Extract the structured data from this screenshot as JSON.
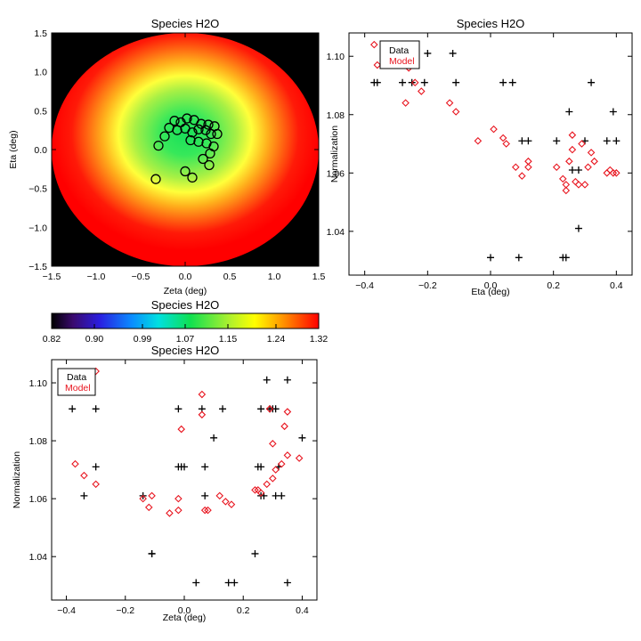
{
  "chart_data": [
    {
      "type": "heatmap",
      "title": "Species H2O",
      "xlabel": "Zeta (deg)",
      "ylabel": "Eta (deg)",
      "xlim": [
        -1.5,
        1.5
      ],
      "ylim": [
        -1.5,
        1.5
      ],
      "xticks": [
        "−1.5",
        "−1.0",
        "−0.5",
        "0.0",
        "0.5",
        "1.0",
        "1.5"
      ],
      "yticks": [
        "−1.5",
        "−1.0",
        "−0.5",
        "0.0",
        "0.5",
        "1.0",
        "1.5"
      ],
      "field_center": [
        0.0,
        0.2
      ],
      "field_radius": 1.5,
      "background_color": "#000000",
      "circles": {
        "x": [
          -0.12,
          -0.05,
          0.02,
          0.1,
          0.18,
          0.26,
          0.33,
          -0.18,
          -0.09,
          0.0,
          0.08,
          0.15,
          0.23,
          0.29,
          0.36,
          -0.23,
          0.06,
          0.15,
          0.24,
          0.32,
          -0.3,
          0.28,
          0.2,
          0.27,
          0.0,
          0.08,
          -0.33
        ],
        "y": [
          0.37,
          0.35,
          0.4,
          0.38,
          0.33,
          0.32,
          0.3,
          0.28,
          0.25,
          0.27,
          0.22,
          0.26,
          0.25,
          0.2,
          0.2,
          0.17,
          0.12,
          0.1,
          0.08,
          0.04,
          0.05,
          -0.05,
          -0.12,
          -0.2,
          -0.28,
          -0.36,
          -0.38
        ]
      }
    },
    {
      "type": "scatter",
      "title": "Species H2O",
      "xlabel": "Eta (deg)",
      "ylabel": "Normalization",
      "xlim": [
        -0.45,
        0.45
      ],
      "ylim": [
        1.025,
        1.108
      ],
      "xticks": [
        "−0.4",
        "−0.2",
        "0.0",
        "0.2",
        "0.4"
      ],
      "yticks": [
        "1.04",
        "1.06",
        "1.08",
        "1.10"
      ],
      "legend": [
        "Data",
        "Model"
      ],
      "legend_position": "top-left",
      "series": [
        {
          "name": "Data",
          "marker": "plus",
          "color": "#000000",
          "x": [
            -0.2,
            -0.36,
            -0.37,
            -0.28,
            -0.25,
            -0.21,
            -0.12,
            -0.11,
            0.04,
            0.07,
            0.1,
            0.12,
            0.21,
            0.25,
            0.26,
            0.28,
            0.3,
            0.32,
            0.37,
            0.39,
            0.4,
            0.23,
            0.24,
            0.0,
            0.09,
            0.28
          ],
          "y": [
            1.101,
            1.091,
            1.091,
            1.091,
            1.091,
            1.091,
            1.101,
            1.091,
            1.091,
            1.091,
            1.071,
            1.071,
            1.071,
            1.081,
            1.061,
            1.061,
            1.071,
            1.091,
            1.071,
            1.081,
            1.071,
            1.031,
            1.031,
            1.031,
            1.031,
            1.041
          ]
        },
        {
          "name": "Model",
          "marker": "diamond",
          "color": "#e8141e",
          "x": [
            -0.37,
            -0.36,
            -0.26,
            -0.24,
            -0.22,
            -0.27,
            -0.13,
            -0.11,
            -0.04,
            0.01,
            0.04,
            0.05,
            0.08,
            0.1,
            0.12,
            0.12,
            0.21,
            0.23,
            0.24,
            0.25,
            0.26,
            0.27,
            0.28,
            0.3,
            0.31,
            0.32,
            0.33,
            0.37,
            0.38,
            0.39,
            0.4,
            0.24,
            0.26,
            0.29
          ],
          "y": [
            1.104,
            1.097,
            1.096,
            1.091,
            1.088,
            1.084,
            1.084,
            1.081,
            1.071,
            1.075,
            1.072,
            1.07,
            1.062,
            1.059,
            1.062,
            1.064,
            1.062,
            1.058,
            1.056,
            1.064,
            1.068,
            1.057,
            1.056,
            1.056,
            1.062,
            1.067,
            1.064,
            1.06,
            1.061,
            1.06,
            1.06,
            1.054,
            1.073,
            1.07
          ]
        }
      ]
    },
    {
      "type": "colorbar",
      "title": "Species H2O",
      "range": [
        0.82,
        1.32
      ],
      "tick_labels": [
        "0.82",
        "0.90",
        "0.99",
        "1.07",
        "1.15",
        "1.24",
        "1.32"
      ]
    },
    {
      "type": "scatter",
      "title": "Species H2O",
      "xlabel": "Zeta (deg)",
      "ylabel": "Normalization",
      "xlim": [
        -0.45,
        0.45
      ],
      "ylim": [
        1.025,
        1.108
      ],
      "xticks": [
        "−0.4",
        "−0.2",
        "0.0",
        "0.2",
        "0.4"
      ],
      "yticks": [
        "1.04",
        "1.06",
        "1.08",
        "1.10"
      ],
      "legend": [
        "Data",
        "Model"
      ],
      "legend_position": "top-left",
      "series": [
        {
          "name": "Data",
          "marker": "plus",
          "color": "#000000",
          "x": [
            -0.38,
            -0.3,
            -0.3,
            -0.34,
            -0.14,
            -0.11,
            -0.11,
            -0.02,
            -0.02,
            -0.01,
            0.0,
            0.06,
            0.07,
            0.07,
            0.1,
            0.13,
            0.15,
            0.24,
            0.25,
            0.26,
            0.26,
            0.26,
            0.27,
            0.28,
            0.29,
            0.3,
            0.31,
            0.32,
            0.35,
            0.35,
            0.4,
            0.31,
            0.04,
            0.17,
            0.33
          ],
          "y": [
            1.091,
            1.091,
            1.071,
            1.061,
            1.061,
            1.041,
            1.041,
            1.091,
            1.071,
            1.071,
            1.071,
            1.091,
            1.071,
            1.061,
            1.081,
            1.091,
            1.031,
            1.041,
            1.071,
            1.071,
            1.091,
            1.061,
            1.061,
            1.101,
            1.091,
            1.091,
            1.091,
            1.071,
            1.101,
            1.031,
            1.081,
            1.061,
            1.031,
            1.031,
            1.061
          ]
        },
        {
          "name": "Model",
          "marker": "diamond",
          "color": "#e8141e",
          "x": [
            -0.3,
            -0.37,
            -0.34,
            -0.3,
            -0.14,
            -0.11,
            -0.12,
            -0.05,
            -0.02,
            -0.02,
            -0.01,
            0.06,
            0.06,
            0.07,
            0.08,
            0.12,
            0.14,
            0.16,
            0.24,
            0.25,
            0.26,
            0.28,
            0.29,
            0.3,
            0.3,
            0.31,
            0.33,
            0.34,
            0.35,
            0.35,
            0.39
          ],
          "y": [
            1.104,
            1.072,
            1.068,
            1.065,
            1.06,
            1.061,
            1.057,
            1.055,
            1.06,
            1.056,
            1.084,
            1.096,
            1.089,
            1.056,
            1.056,
            1.061,
            1.059,
            1.058,
            1.063,
            1.063,
            1.062,
            1.065,
            1.091,
            1.067,
            1.079,
            1.07,
            1.072,
            1.085,
            1.09,
            1.075,
            1.074
          ]
        }
      ]
    }
  ]
}
